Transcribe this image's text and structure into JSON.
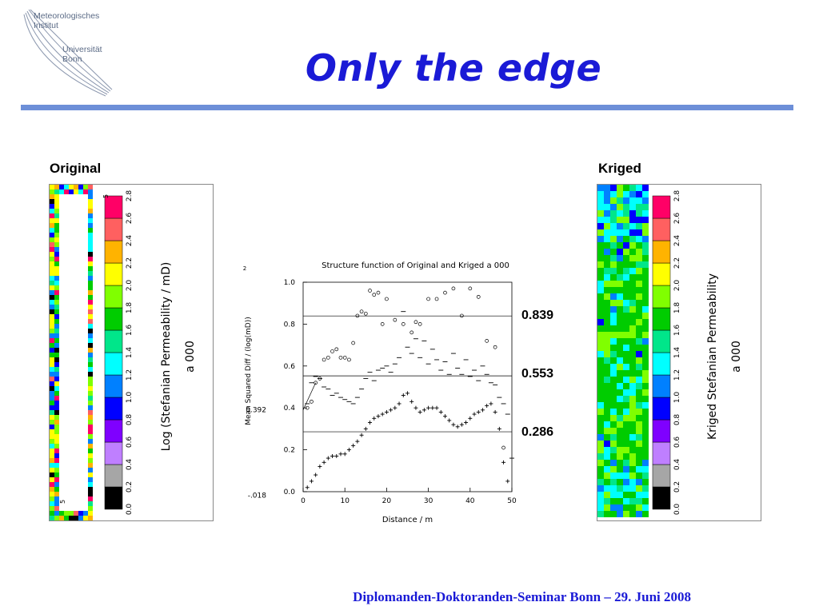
{
  "logo": {
    "line1": "Meteorologisches",
    "line2": "Institut",
    "line3": "Universität",
    "line4": "Bonn"
  },
  "title": "Only the edge",
  "original_label": "Original",
  "kriged_label": "Kriged",
  "colors": {
    "title": "#1a1ad6",
    "rule": "#6d8fd8",
    "scale": [
      "#000000",
      "#a6a6a6",
      "#bf7fff",
      "#7f00ff",
      "#0000ff",
      "#0080ff",
      "#00ffff",
      "#00e68a",
      "#00cc00",
      "#80ff00",
      "#ffff00",
      "#ffb300",
      "#ff6060",
      "#ff0066"
    ]
  },
  "colorbar": {
    "ticks": [
      "0.0",
      "0.2",
      "0.4",
      "0.6",
      "0.8",
      "1.0",
      "1.2",
      "1.4",
      "1.6",
      "1.8",
      "2.0",
      "2.2",
      "2.4",
      "2.6",
      "2.8"
    ],
    "original_title_line1": "Log (Stefanian Permeability / mD)",
    "original_title_line2": "a 000",
    "kriged_title_line1": "Kriged Stefanian Permeability",
    "kriged_title_line2": "a 000"
  },
  "original_strip_marks": {
    "top": "5",
    "bottom": "5"
  },
  "values_right": [
    "0.839",
    "0.553",
    "0.286"
  ],
  "footer": "Diplomanden-Doktoranden-Seminar Bonn – 29. Juni 2008",
  "chart_data": {
    "type": "scatter",
    "title": "Structure function of Original and Kriged a 000",
    "xlabel": "Distance / m",
    "ylabel": "Mean Squared Diff / (log(mD))",
    "ylabel_exponent": "2",
    "xlim": [
      0,
      50
    ],
    "ylim": [
      0,
      1.0
    ],
    "xticks": [
      "0",
      "10",
      "20",
      "30",
      "40",
      "50"
    ],
    "yticks": [
      "0.0",
      "0.2",
      "0.4",
      "0.6",
      "0.8",
      "1.0"
    ],
    "extra_ylabels": [
      {
        "text": "0.392",
        "y": 0.392
      },
      {
        "text": "-.018",
        "y": -0.018
      }
    ],
    "hlines": [
      0.839,
      0.553,
      0.286
    ],
    "series": [
      {
        "marker": "circle",
        "x": [
          1,
          2,
          3,
          4,
          5,
          6,
          7,
          8,
          9,
          10,
          11,
          12,
          13,
          14,
          15,
          16,
          17,
          18,
          19,
          20,
          22,
          24,
          26,
          27,
          28,
          30,
          32,
          34,
          36,
          38,
          40,
          42,
          44,
          46,
          48
        ],
        "y": [
          0.4,
          0.43,
          0.52,
          0.54,
          0.63,
          0.64,
          0.67,
          0.68,
          0.64,
          0.64,
          0.63,
          0.71,
          0.84,
          0.86,
          0.85,
          0.96,
          0.94,
          0.95,
          0.8,
          0.92,
          0.82,
          0.8,
          0.76,
          0.81,
          0.8,
          0.92,
          0.92,
          0.95,
          0.97,
          0.84,
          0.97,
          0.93,
          0.72,
          0.69,
          0.21
        ]
      },
      {
        "marker": "minus",
        "x": [
          1,
          2,
          3,
          4,
          5,
          6,
          7,
          8,
          9,
          10,
          11,
          12,
          13,
          14,
          15,
          16,
          17,
          18,
          19,
          20,
          21,
          22,
          23,
          24,
          25,
          26,
          27,
          28,
          29,
          30,
          31,
          32,
          33,
          34,
          35,
          36,
          37,
          38,
          39,
          40,
          41,
          42,
          43,
          44,
          45,
          46,
          47,
          48,
          49,
          50
        ],
        "y": [
          0.42,
          0.52,
          0.55,
          0.54,
          0.5,
          0.49,
          0.46,
          0.47,
          0.45,
          0.44,
          0.43,
          0.42,
          0.45,
          0.49,
          0.54,
          0.57,
          0.53,
          0.58,
          0.59,
          0.6,
          0.57,
          0.61,
          0.64,
          0.86,
          0.69,
          0.66,
          0.73,
          0.64,
          0.72,
          0.61,
          0.68,
          0.63,
          0.58,
          0.62,
          0.56,
          0.66,
          0.59,
          0.56,
          0.63,
          0.55,
          0.58,
          0.53,
          0.6,
          0.56,
          0.52,
          0.51,
          0.45,
          0.42,
          0.37,
          0.16
        ]
      },
      {
        "marker": "plus",
        "x": [
          1,
          2,
          3,
          4,
          5,
          6,
          7,
          8,
          9,
          10,
          11,
          12,
          13,
          14,
          15,
          16,
          17,
          18,
          19,
          20,
          21,
          22,
          23,
          24,
          25,
          26,
          27,
          28,
          29,
          30,
          31,
          32,
          33,
          34,
          35,
          36,
          37,
          38,
          39,
          40,
          41,
          42,
          43,
          44,
          45,
          46,
          47,
          48,
          49
        ],
        "y": [
          0.02,
          0.05,
          0.08,
          0.12,
          0.14,
          0.16,
          0.17,
          0.17,
          0.18,
          0.18,
          0.2,
          0.22,
          0.24,
          0.27,
          0.3,
          0.33,
          0.35,
          0.36,
          0.37,
          0.38,
          0.39,
          0.4,
          0.42,
          0.46,
          0.47,
          0.43,
          0.4,
          0.38,
          0.39,
          0.4,
          0.4,
          0.4,
          0.38,
          0.36,
          0.34,
          0.32,
          0.31,
          0.32,
          0.33,
          0.35,
          0.37,
          0.38,
          0.39,
          0.41,
          0.42,
          0.38,
          0.3,
          0.14,
          0.05
        ]
      }
    ]
  }
}
